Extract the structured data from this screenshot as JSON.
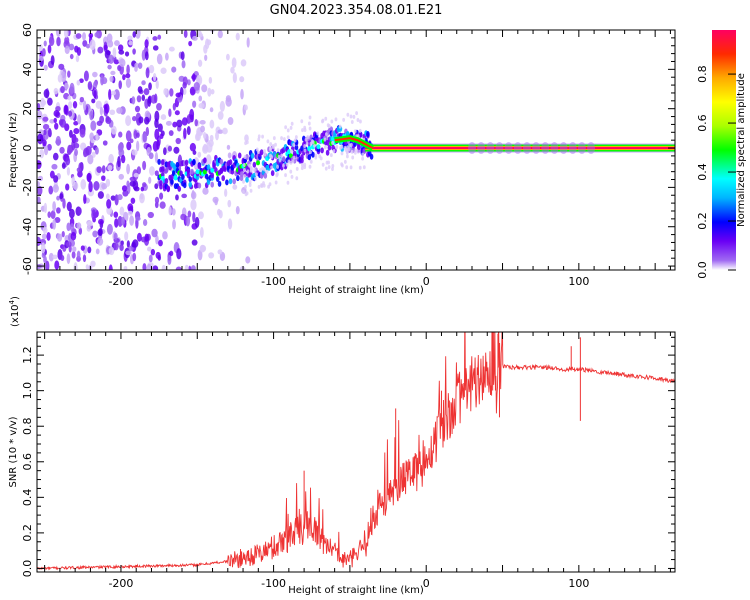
{
  "title": "GN04.2023.354.08.01.E21",
  "chart_data": [
    {
      "type": "heatmap",
      "name": "spectrogram",
      "xlabel": "Height of straight line (km)",
      "ylabel": "Frequency (Hz)",
      "xlim": [
        -255,
        163
      ],
      "ylim": [
        -62,
        60
      ],
      "xticks": [
        -200,
        -100,
        0,
        100
      ],
      "yticks": [
        -60,
        -40,
        -20,
        0,
        20,
        40,
        60
      ],
      "noise_region_x": [
        -255,
        -135
      ],
      "signal_start_x": -175,
      "signal_track": {
        "x": [
          -175,
          -160,
          -140,
          -120,
          -100,
          -90,
          -80,
          -70,
          -60,
          -50,
          -45,
          -40,
          -35,
          -20,
          0,
          50,
          100,
          163
        ],
        "freq": [
          -14,
          -14,
          -12,
          -10,
          -6,
          -3,
          0,
          2,
          4,
          5,
          4,
          2,
          0,
          0,
          0,
          0,
          0,
          0
        ]
      },
      "colorbar": {
        "label": "Normalized spectral amplitude",
        "ticks": [
          0.0,
          0.2,
          0.4,
          0.6,
          0.8
        ],
        "colors": [
          "#ffffff",
          "#a06af2",
          "#6a00f5",
          "#0000ff",
          "#00b4ff",
          "#00ffff",
          "#00ff00",
          "#aaff00",
          "#ffff00",
          "#ffaa00",
          "#ff2a00",
          "#ff0060"
        ]
      }
    },
    {
      "type": "line",
      "name": "snr",
      "xlabel": "Height of straight line (km)",
      "ylabel": "SNR (10 * v/v)",
      "scale_label": "(x10",
      "scale_exponent": "4",
      "xlim": [
        -255,
        163
      ],
      "ylim": [
        -0.02,
        1.33
      ],
      "xticks": [
        -200,
        -100,
        0,
        100
      ],
      "yticks": [
        0.0,
        0.2,
        0.4,
        0.6,
        0.8,
        1.0,
        1.2
      ],
      "color": "#ee3333",
      "envelope": {
        "x": [
          -255,
          -200,
          -150,
          -130,
          -110,
          -100,
          -90,
          -80,
          -75,
          -70,
          -65,
          -60,
          -55,
          -50,
          -45,
          -40,
          -35,
          -30,
          -25,
          -20,
          -15,
          -10,
          -5,
          0,
          5,
          10,
          15,
          20,
          25,
          30,
          35,
          40,
          45,
          50,
          55,
          60,
          70,
          80,
          90,
          100,
          110,
          120,
          130,
          140,
          150,
          163
        ],
        "y": [
          0.0,
          0.01,
          0.02,
          0.04,
          0.08,
          0.12,
          0.18,
          0.22,
          0.25,
          0.2,
          0.12,
          0.08,
          0.05,
          0.05,
          0.08,
          0.15,
          0.25,
          0.35,
          0.42,
          0.45,
          0.5,
          0.52,
          0.55,
          0.6,
          0.7,
          0.8,
          0.88,
          0.95,
          1.0,
          1.05,
          1.08,
          1.1,
          1.12,
          1.14,
          1.13,
          1.13,
          1.13,
          1.13,
          1.12,
          1.12,
          1.11,
          1.1,
          1.09,
          1.08,
          1.07,
          1.05
        ]
      },
      "spikes": [
        {
          "x": -80,
          "y": 0.55
        },
        {
          "x": -20,
          "y": 0.9
        },
        {
          "x": 10,
          "y": 1.0
        },
        {
          "x": 47,
          "y": 1.32
        },
        {
          "x": 48,
          "y": 0.85
        },
        {
          "x": 95,
          "y": 1.25
        },
        {
          "x": 101,
          "y": 1.3
        },
        {
          "x": 101,
          "y": 0.83
        }
      ]
    }
  ]
}
